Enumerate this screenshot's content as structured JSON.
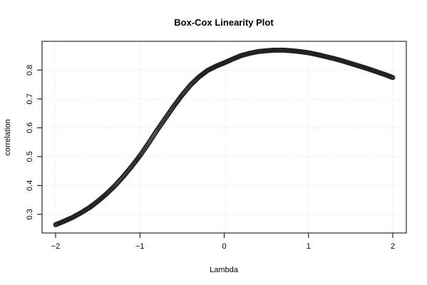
{
  "chart_data": {
    "type": "scatter",
    "title": "Box-Cox Linearity Plot",
    "xlabel": "Lambda",
    "ylabel": "correlation",
    "xlim": [
      -2,
      2
    ],
    "ylim": [
      0.26,
      0.87
    ],
    "xticks": [
      -2,
      -1,
      0,
      1,
      2
    ],
    "yticks": [
      0.3,
      0.4,
      0.5,
      0.6,
      0.7,
      0.8
    ],
    "grid": true,
    "marker": "open-circle",
    "marker_color": "#222222",
    "series": [
      {
        "x": [
          -2.0,
          -1.9,
          -1.8,
          -1.7,
          -1.6,
          -1.5,
          -1.4,
          -1.3,
          -1.2,
          -1.1,
          -1.0,
          -0.9,
          -0.8,
          -0.7,
          -0.6,
          -0.5,
          -0.4,
          -0.3,
          -0.2,
          -0.1,
          0.0,
          0.1,
          0.2,
          0.3,
          0.4,
          0.5,
          0.6,
          0.7,
          0.8,
          0.9,
          1.0,
          1.1,
          1.2,
          1.3,
          1.4,
          1.5,
          1.6,
          1.7,
          1.8,
          1.9,
          2.0
        ],
        "y": [
          0.264,
          0.276,
          0.289,
          0.305,
          0.323,
          0.345,
          0.37,
          0.398,
          0.43,
          0.465,
          0.503,
          0.545,
          0.59,
          0.632,
          0.674,
          0.713,
          0.748,
          0.776,
          0.798,
          0.813,
          0.825,
          0.838,
          0.85,
          0.858,
          0.864,
          0.867,
          0.869,
          0.869,
          0.867,
          0.864,
          0.86,
          0.854,
          0.847,
          0.84,
          0.832,
          0.823,
          0.814,
          0.805,
          0.795,
          0.785,
          0.774
        ]
      }
    ]
  }
}
